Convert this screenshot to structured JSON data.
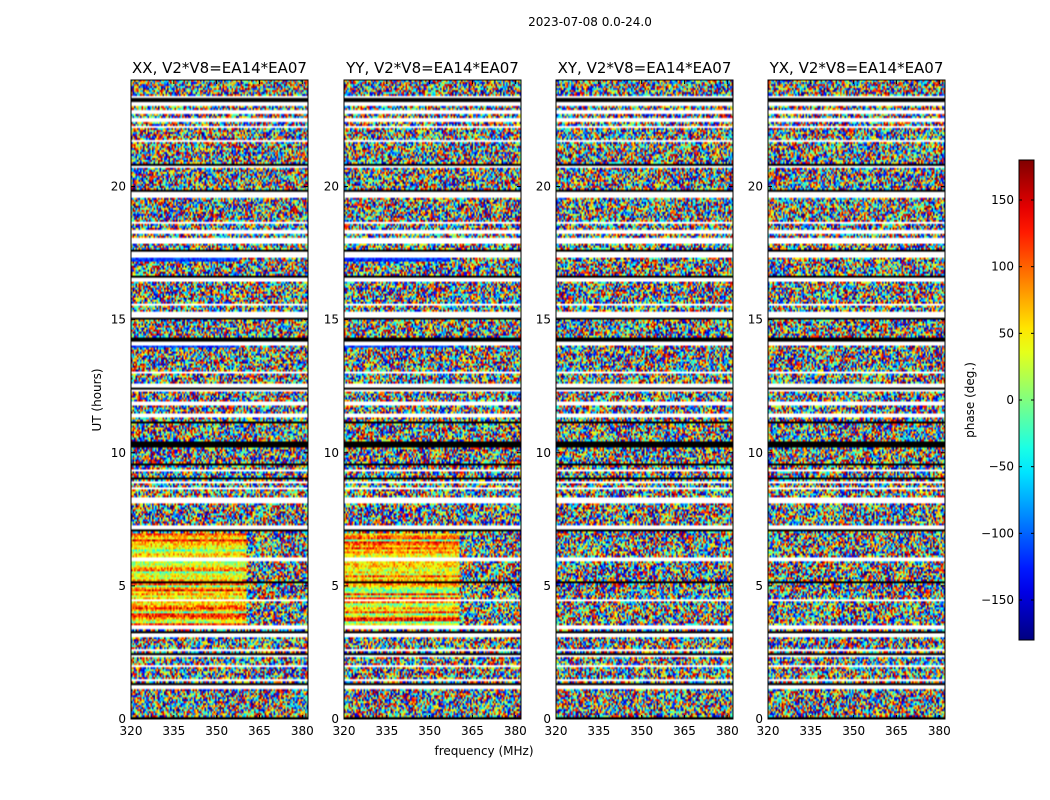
{
  "chart_data": {
    "type": "heatmap",
    "suptitle": "2023-07-08 0.0-24.0",
    "ylabel": "UT (hours)",
    "xlabel": "frequency (MHz)",
    "xlim": [
      320,
      382
    ],
    "ylim": [
      0,
      24
    ],
    "xticks": [
      320,
      335,
      350,
      365,
      380
    ],
    "yticks": [
      0,
      5,
      10,
      15,
      20
    ],
    "panels": [
      {
        "title": "XX, V2*V8=EA14*EA07",
        "coherent": true
      },
      {
        "title": "YY, V2*V8=EA14*EA07",
        "coherent": true
      },
      {
        "title": "XY, V2*V8=EA14*EA07",
        "coherent": false
      },
      {
        "title": "YX, V2*V8=EA14*EA07",
        "coherent": false
      }
    ],
    "gap_hours": [
      [
        0.0,
        0.05
      ],
      [
        1.15,
        1.3
      ],
      [
        1.45,
        1.5
      ],
      [
        1.95,
        2.0
      ],
      [
        2.3,
        2.4
      ],
      [
        2.55,
        2.6
      ],
      [
        3.1,
        3.25
      ],
      [
        3.35,
        3.55
      ],
      [
        4.4,
        4.5
      ],
      [
        5.95,
        6.05
      ],
      [
        7.1,
        7.3
      ],
      [
        8.1,
        8.3
      ],
      [
        8.6,
        8.7
      ],
      [
        8.85,
        8.95
      ],
      [
        9.3,
        9.35
      ],
      [
        11.35,
        11.45
      ],
      [
        11.8,
        11.9
      ],
      [
        12.3,
        12.35
      ],
      [
        12.45,
        12.6
      ],
      [
        13.0,
        13.05
      ],
      [
        14.0,
        14.2
      ],
      [
        15.1,
        15.3
      ],
      [
        15.5,
        15.6
      ],
      [
        16.45,
        16.6
      ],
      [
        17.3,
        17.55
      ],
      [
        17.85,
        18.05
      ],
      [
        18.2,
        18.35
      ],
      [
        18.6,
        18.7
      ],
      [
        19.6,
        19.8
      ],
      [
        20.7,
        20.8
      ],
      [
        21.7,
        21.75
      ],
      [
        22.2,
        22.3
      ],
      [
        22.45,
        22.55
      ],
      [
        22.7,
        22.85
      ],
      [
        23.05,
        23.2
      ],
      [
        23.3,
        23.4
      ]
    ],
    "black_hours": [
      [
        0.0,
        0.08
      ],
      [
        1.3,
        1.35
      ],
      [
        2.0,
        2.05
      ],
      [
        2.4,
        2.45
      ],
      [
        3.25,
        3.3
      ],
      [
        5.1,
        5.15
      ],
      [
        7.05,
        7.1
      ],
      [
        8.3,
        8.35
      ],
      [
        9.0,
        9.1
      ],
      [
        9.5,
        9.6
      ],
      [
        10.2,
        10.45
      ],
      [
        10.7,
        10.75
      ],
      [
        11.1,
        11.15
      ],
      [
        11.6,
        11.65
      ],
      [
        12.35,
        12.45
      ],
      [
        14.2,
        14.3
      ],
      [
        15.0,
        15.1
      ],
      [
        16.6,
        16.65
      ],
      [
        17.55,
        17.6
      ],
      [
        19.8,
        19.85
      ],
      [
        20.8,
        20.85
      ],
      [
        23.2,
        23.3
      ]
    ],
    "colorbar": {
      "label": "phase (deg.)",
      "range": [
        -180,
        180
      ],
      "ticks": [
        -150,
        -100,
        -50,
        0,
        50,
        100,
        150
      ],
      "colormap": "jet"
    }
  }
}
